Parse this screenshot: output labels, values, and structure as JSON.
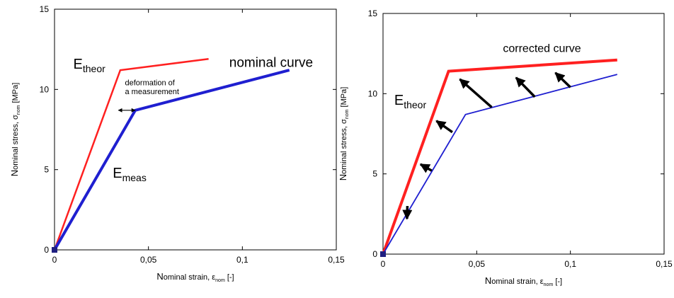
{
  "chart_data": [
    {
      "type": "line",
      "xlabel": {
        "cap": "N",
        "rest": "ominal strain, ",
        "sym": "ε",
        "sub": "nom",
        "unit": " [-]"
      },
      "ylabel": {
        "cap": "N",
        "rest": "ominal stress, ",
        "sym": "σ",
        "sub": "nom",
        "unit": " [MPa]"
      },
      "xlim": [
        0,
        0.15
      ],
      "ylim": [
        0,
        15
      ],
      "xticks": [
        {
          "v": 0,
          "label": "0"
        },
        {
          "v": 0.05,
          "label": "0,05"
        },
        {
          "v": 0.1,
          "label": "0,1"
        },
        {
          "v": 0.15,
          "label": "0,15"
        }
      ],
      "yticks": [
        {
          "v": 0,
          "label": "0"
        },
        {
          "v": 5,
          "label": "5"
        },
        {
          "v": 10,
          "label": "10"
        },
        {
          "v": 15,
          "label": "15"
        }
      ],
      "series": [
        {
          "color": "#ff2020",
          "width": 2.5,
          "points": [
            [
              0,
              0
            ],
            [
              0.035,
              11.2
            ],
            [
              0.082,
              11.9
            ]
          ]
        },
        {
          "color": "#1f1fd0",
          "width": 4,
          "points": [
            [
              0,
              0
            ],
            [
              0.043,
              8.7
            ],
            [
              0.125,
              11.2
            ]
          ]
        }
      ],
      "annotations": [
        {
          "type": "dblarrow",
          "from": [
            0.034,
            8.7
          ],
          "to": [
            0.043,
            8.7
          ]
        },
        {
          "type": "label",
          "main": "E",
          "sub": "theor",
          "at": [
            0.01,
            11.3
          ],
          "size": 20
        },
        {
          "type": "label",
          "main": "E",
          "sub": "meas",
          "at": [
            0.031,
            4.5
          ],
          "size": 20
        },
        {
          "type": "text",
          "text": "deformation of",
          "at": [
            0.0375,
            10.25
          ],
          "size": 11
        },
        {
          "type": "text",
          "text": "a measurement",
          "at": [
            0.0375,
            9.7
          ],
          "size": 11
        },
        {
          "type": "text",
          "text": "nominal curve",
          "at": [
            0.093,
            11.4
          ],
          "size": 19
        }
      ]
    },
    {
      "type": "line",
      "xlabel": {
        "cap": "N",
        "rest": "ominal strain, ",
        "sym": "ε",
        "sub": "nom",
        "unit": " [-]"
      },
      "ylabel": {
        "cap": "N",
        "rest": "ominal stress, ",
        "sym": "σ",
        "sub": "nom",
        "unit": " [MPa]"
      },
      "xlim": [
        0,
        0.15
      ],
      "ylim": [
        0,
        15
      ],
      "xticks": [
        {
          "v": 0,
          "label": "0"
        },
        {
          "v": 0.05,
          "label": "0,05"
        },
        {
          "v": 0.1,
          "label": "0,1"
        },
        {
          "v": 0.15,
          "label": "0,15"
        }
      ],
      "yticks": [
        {
          "v": 0,
          "label": "0"
        },
        {
          "v": 5,
          "label": "5"
        },
        {
          "v": 10,
          "label": "10"
        },
        {
          "v": 15,
          "label": "15"
        }
      ],
      "series": [
        {
          "color": "#ff2020",
          "width": 4,
          "points": [
            [
              0,
              0
            ],
            [
              0.035,
              11.4
            ],
            [
              0.125,
              12.1
            ]
          ]
        },
        {
          "color": "#1f1fd0",
          "width": 1.8,
          "points": [
            [
              0,
              0
            ],
            [
              0.044,
              8.7
            ],
            [
              0.125,
              11.2
            ]
          ]
        }
      ],
      "annotations": [
        {
          "type": "arrow",
          "from": [
            0.013,
            3.0
          ],
          "to": [
            0.0128,
            2.2
          ]
        },
        {
          "type": "arrow",
          "from": [
            0.026,
            5.2
          ],
          "to": [
            0.02,
            5.6
          ]
        },
        {
          "type": "arrow",
          "from": [
            0.037,
            7.6
          ],
          "to": [
            0.0285,
            8.3
          ]
        },
        {
          "type": "arrow",
          "from": [
            0.058,
            9.15
          ],
          "to": [
            0.041,
            10.9
          ]
        },
        {
          "type": "arrow",
          "from": [
            0.081,
            9.8
          ],
          "to": [
            0.071,
            11.0
          ]
        },
        {
          "type": "arrow",
          "from": [
            0.1,
            10.4
          ],
          "to": [
            0.092,
            11.3
          ]
        },
        {
          "type": "label",
          "main": "E",
          "sub": "theor",
          "at": [
            0.006,
            9.3
          ],
          "size": 20
        },
        {
          "type": "text",
          "text": "corrected curve",
          "at": [
            0.064,
            12.6
          ],
          "size": 16
        }
      ]
    }
  ]
}
